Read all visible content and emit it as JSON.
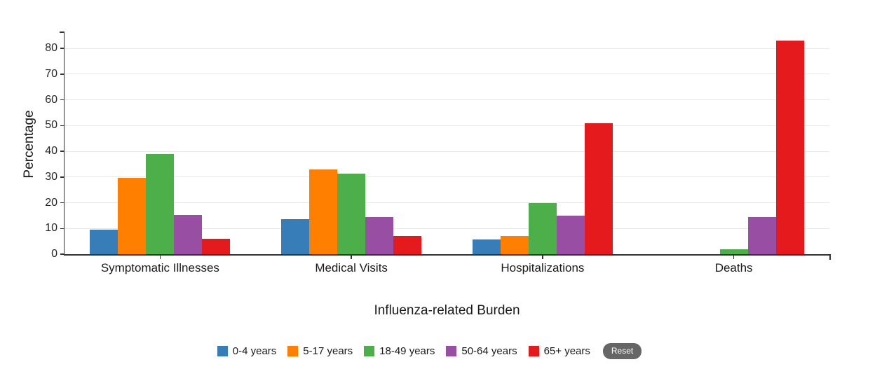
{
  "chart_data": {
    "type": "bar",
    "title": "",
    "xlabel": "Influenza-related Burden",
    "ylabel": "Percentage",
    "categories": [
      "Symptomatic Illnesses",
      "Medical Visits",
      "Hospitalizations",
      "Deaths"
    ],
    "series": [
      {
        "name": "0-4 years",
        "color": "#377eb8",
        "values": [
          9.5,
          13.6,
          5.7,
          0
        ]
      },
      {
        "name": "5-17 years",
        "color": "#ff7f00",
        "values": [
          29.7,
          33.0,
          7.1,
          0
        ]
      },
      {
        "name": "18-49 years",
        "color": "#4daf4a",
        "values": [
          39.0,
          31.2,
          20.0,
          2.0
        ]
      },
      {
        "name": "50-64 years",
        "color": "#984ea3",
        "values": [
          15.3,
          14.4,
          15.0,
          14.3
        ]
      },
      {
        "name": "65+ years",
        "color": "#e41a1c",
        "values": [
          5.9,
          7.2,
          51.0,
          83.0
        ]
      }
    ],
    "y_ticks": [
      0,
      10,
      20,
      30,
      40,
      50,
      60,
      70,
      80
    ],
    "ylim": [
      0,
      87
    ],
    "grid": true,
    "legend_position": "bottom"
  },
  "legend": {
    "reset_label": "Reset"
  },
  "colors": {
    "axis": "#333333",
    "grid": "#e8e8e8",
    "text": "#1a1a1a",
    "reset_bg": "#666666",
    "reset_text": "#ffffff"
  }
}
